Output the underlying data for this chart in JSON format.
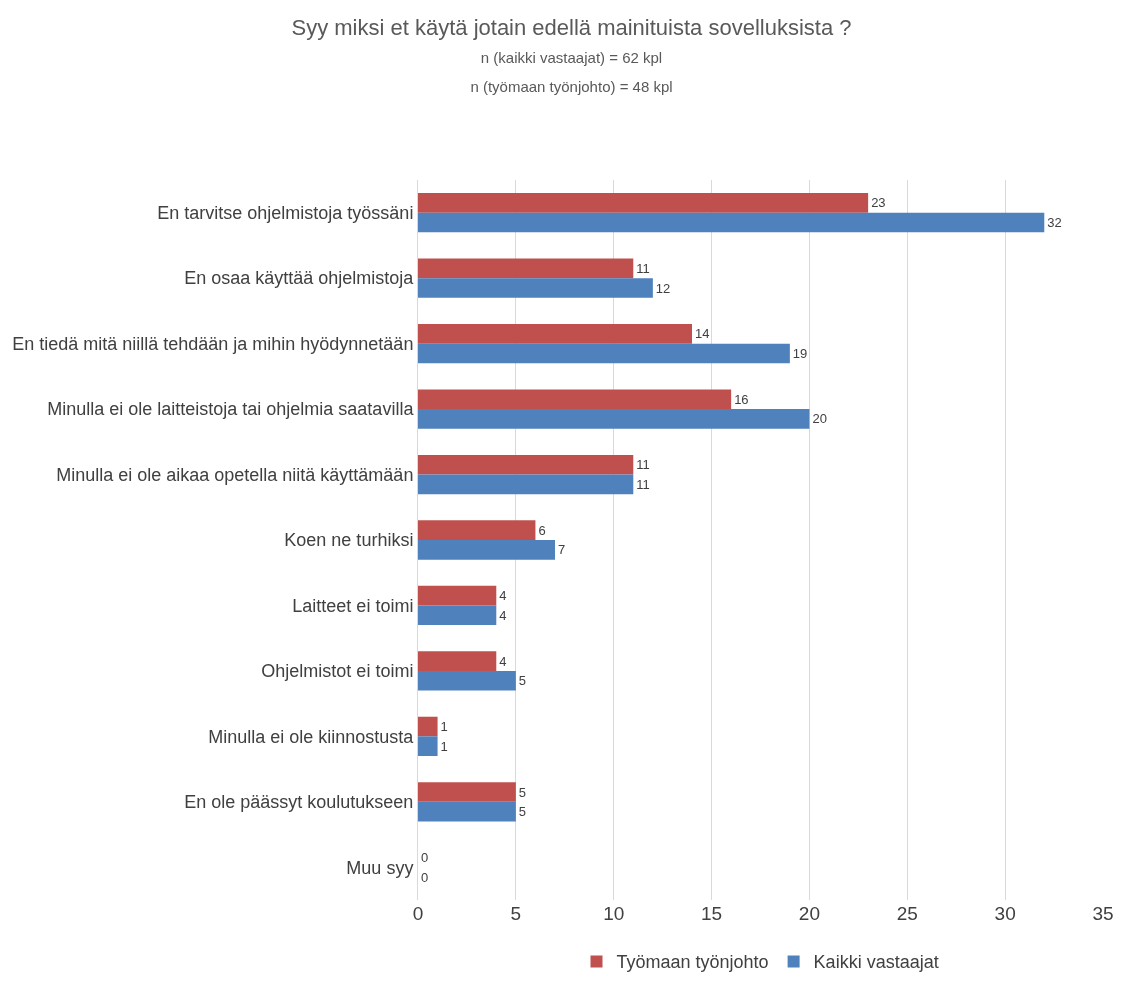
{
  "chart_data": {
    "type": "bar",
    "orientation": "horizontal",
    "title": "Syy miksi et käytä jotain edellä mainituista sovelluksista ?",
    "subtitle": "n (kaikki vastaajat) = 62 kpl\nn (työmaan työnjohto) = 48 kpl",
    "categories": [
      "En tarvitse ohjelmistoja työssäni",
      "En osaa käyttää ohjelmistoja",
      "En tiedä mitä niillä tehdään ja mihin hyödynnetään",
      "Minulla ei ole laitteistoja tai ohjelmia saatavilla",
      "Minulla ei ole aikaa opetella niitä käyttämään",
      "Koen ne turhiksi",
      "Laitteet ei toimi",
      "Ohjelmistot ei toimi",
      "Minulla ei ole kiinnostusta",
      "En ole päässyt koulutukseen",
      "Muu syy"
    ],
    "series": [
      {
        "name": "Työmaan työnjohto",
        "color": "#c0504d",
        "values": [
          23,
          11,
          14,
          16,
          11,
          6,
          4,
          4,
          1,
          5,
          0
        ]
      },
      {
        "name": "Kaikki vastaajat",
        "color": "#4f81bd",
        "values": [
          32,
          12,
          19,
          20,
          11,
          7,
          4,
          5,
          1,
          5,
          0
        ]
      }
    ],
    "xlim": [
      0,
      35
    ],
    "xticks": [
      0,
      5,
      10,
      15,
      20,
      25,
      30,
      35
    ],
    "grid": "x",
    "legend": "bottom",
    "data_labels": true
  }
}
